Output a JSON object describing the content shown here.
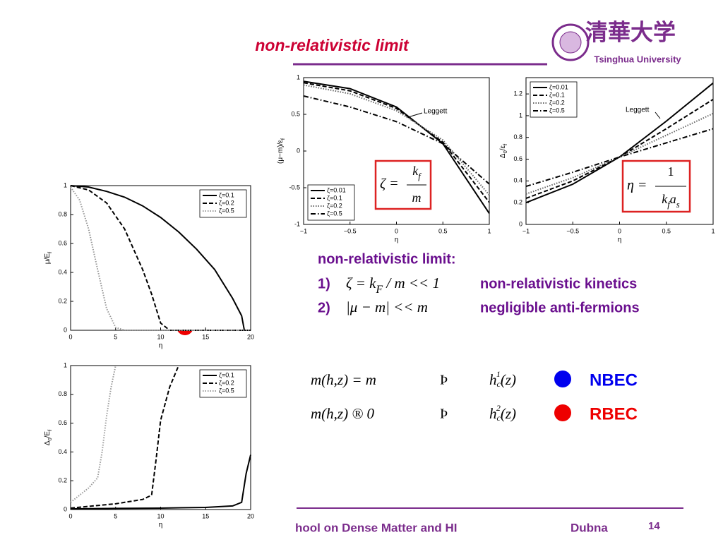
{
  "header": {
    "title": "non-relativistic limit",
    "logo_chinese": "清華大学",
    "logo_text": "Tsinghua University"
  },
  "plots": [
    {
      "type": "line",
      "xlabel": "η",
      "ylabel": [
        "μ/E",
        "f"
      ],
      "xlim": [
        0,
        20
      ],
      "ylim": [
        0,
        1
      ],
      "xticks": [
        0,
        5,
        10,
        15,
        20
      ],
      "yticks": [
        0,
        0.2,
        0.4,
        0.6,
        0.8,
        1
      ],
      "legend": "upper right",
      "series": [
        {
          "name": "ζ=0.1",
          "color": "#000000",
          "dash": "solid",
          "x": [
            0,
            2,
            4,
            6,
            8,
            10,
            12,
            14,
            16,
            18,
            19,
            19.3,
            20
          ],
          "values": [
            1,
            0.99,
            0.96,
            0.92,
            0.86,
            0.78,
            0.68,
            0.56,
            0.42,
            0.22,
            0.1,
            0,
            0
          ]
        },
        {
          "name": "ζ=0.2",
          "color": "#000000",
          "dash": "dashed",
          "x": [
            0,
            2,
            4,
            6,
            8,
            9,
            10,
            11,
            12,
            20
          ],
          "values": [
            1,
            0.97,
            0.88,
            0.7,
            0.42,
            0.25,
            0.05,
            0,
            0,
            0
          ]
        },
        {
          "name": "ζ=0.5",
          "color": "#999999",
          "dash": "dotted",
          "x": [
            0,
            1,
            2,
            3,
            4,
            5,
            6,
            20
          ],
          "values": [
            0.99,
            0.9,
            0.7,
            0.42,
            0.15,
            0.02,
            0,
            0
          ]
        }
      ]
    },
    {
      "type": "line",
      "xlabel": "η",
      "ylabel": [
        "Δ",
        "0",
        "/E",
        "f"
      ],
      "xlim": [
        0,
        20
      ],
      "ylim": [
        0,
        1
      ],
      "xticks": [
        0,
        5,
        10,
        15,
        20
      ],
      "yticks": [
        0,
        0.2,
        0.4,
        0.6,
        0.8,
        1
      ],
      "legend": "upper right",
      "series": [
        {
          "name": "ζ=0.1",
          "color": "#000000",
          "dash": "solid",
          "x": [
            0,
            5,
            10,
            15,
            18,
            19,
            19.5,
            20
          ],
          "values": [
            0.005,
            0.008,
            0.01,
            0.015,
            0.025,
            0.05,
            0.25,
            0.38
          ]
        },
        {
          "name": "ζ=0.2",
          "color": "#000000",
          "dash": "dashed",
          "x": [
            0,
            5,
            8,
            9,
            9.5,
            10,
            11,
            12
          ],
          "values": [
            0.01,
            0.04,
            0.07,
            0.1,
            0.35,
            0.62,
            0.85,
            1
          ]
        },
        {
          "name": "ζ=0.5",
          "color": "#999999",
          "dash": "dotted",
          "x": [
            0,
            1,
            2,
            3,
            3.5,
            4,
            4.5,
            5
          ],
          "values": [
            0.05,
            0.1,
            0.15,
            0.22,
            0.4,
            0.65,
            0.85,
            1
          ]
        }
      ]
    },
    {
      "type": "line",
      "xlabel": "η",
      "ylabel": [
        "(μ−m)/ε",
        "f"
      ],
      "xlim": [
        -1,
        1
      ],
      "ylim": [
        -1,
        1
      ],
      "xticks": [
        {
          "value": -1,
          "label": "−1"
        },
        {
          "value": -0.5,
          "label": "−0.5"
        },
        0,
        0.5,
        1
      ],
      "yticks": [
        -1,
        -0.5,
        0,
        0.5,
        1
      ],
      "legend": "lower left",
      "annotation": "Leggett",
      "box_formula": [
        "ζ =",
        "k",
        "f",
        "m"
      ],
      "series": [
        {
          "name": "ζ=0.01",
          "color": "#000000",
          "dash": "solid",
          "x": [
            -1,
            -0.5,
            0,
            0.5,
            1
          ],
          "values": [
            0.95,
            0.85,
            0.6,
            0.1,
            -0.85
          ]
        },
        {
          "name": "ζ=0.1",
          "color": "#000000",
          "dash": "dashed",
          "x": [
            -1,
            -0.5,
            0,
            0.5,
            1
          ],
          "values": [
            0.93,
            0.82,
            0.58,
            0.12,
            -0.7
          ]
        },
        {
          "name": "ζ=0.2",
          "color": "#666666",
          "dash": "dotted",
          "x": [
            -1,
            -0.5,
            0,
            0.5,
            1
          ],
          "values": [
            0.9,
            0.78,
            0.55,
            0.15,
            -0.6
          ]
        },
        {
          "name": "ζ=0.5",
          "color": "#000000",
          "dash": "dashdot",
          "x": [
            -1,
            -0.5,
            0,
            0.5,
            1
          ],
          "values": [
            0.75,
            0.6,
            0.4,
            0.1,
            -0.45
          ]
        }
      ]
    },
    {
      "type": "line",
      "xlabel": "η",
      "ylabel": [
        "Δ",
        "0",
        "/ε",
        "f"
      ],
      "xlim": [
        -1,
        1
      ],
      "ylim": [
        0,
        1.35
      ],
      "xticks": [
        {
          "value": -1,
          "label": "−1"
        },
        {
          "value": -0.5,
          "label": "−0.5"
        },
        0,
        0.5,
        1
      ],
      "yticks": [
        0,
        0.2,
        0.4,
        0.6,
        0.8,
        1,
        1.2
      ],
      "legend": "upper left",
      "annotation": "Leggett",
      "box_formula": [
        "η =",
        "1",
        "k",
        "f",
        "a",
        "s"
      ],
      "series": [
        {
          "name": "ζ=0.01",
          "color": "#000000",
          "dash": "solid",
          "x": [
            -1,
            -0.5,
            0,
            0.5,
            1
          ],
          "values": [
            0.2,
            0.37,
            0.62,
            0.95,
            1.3
          ]
        },
        {
          "name": "ζ=0.1",
          "color": "#000000",
          "dash": "dashed",
          "x": [
            -1,
            -0.5,
            0,
            0.5,
            1
          ],
          "values": [
            0.24,
            0.4,
            0.62,
            0.88,
            1.15
          ]
        },
        {
          "name": "ζ=0.2",
          "color": "#666666",
          "dash": "dotted",
          "x": [
            -1,
            -0.5,
            0,
            0.5,
            1
          ],
          "values": [
            0.28,
            0.43,
            0.62,
            0.82,
            1.02
          ]
        },
        {
          "name": "ζ=0.5",
          "color": "#000000",
          "dash": "dashdot",
          "x": [
            -1,
            -0.5,
            0,
            0.5,
            1
          ],
          "values": [
            0.35,
            0.48,
            0.62,
            0.75,
            0.88
          ]
        }
      ]
    }
  ],
  "conditions": {
    "heading": "non-relativistic limit:",
    "items": [
      {
        "number": "1)",
        "formula": [
          "ζ = k",
          "F",
          " / m << 1"
        ],
        "text": "non-relativistic kinetics"
      },
      {
        "number": "2)",
        "formula": [
          "|μ − m| << m"
        ],
        "text": "negligible anti-fermions"
      }
    ]
  },
  "phases": [
    {
      "lhs": "m(h,z) =  m",
      "arrow": "Þ",
      "h": [
        "h",
        "c",
        "1",
        "(z)"
      ],
      "label": "NBEC",
      "color": "#0000ee"
    },
    {
      "lhs": "m(h,z) ®  0",
      "arrow": "Þ",
      "h": [
        "h",
        "c",
        "2",
        "(z)"
      ],
      "label": "RBEC",
      "color": "#ee0000"
    }
  ],
  "footer": {
    "text": "hool on Dense Matter and HI",
    "place": "Dubna",
    "page": "14"
  }
}
